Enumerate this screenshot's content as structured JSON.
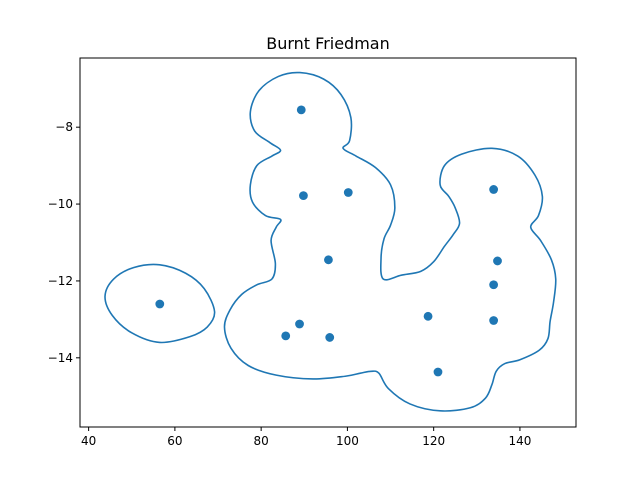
{
  "chart_data": {
    "type": "scatter",
    "title": "Burnt Friedman",
    "xlabel": "",
    "ylabel": "",
    "xlim": [
      38,
      153
    ],
    "ylim": [
      -15.8,
      -6.2
    ],
    "x_ticks": [
      40,
      60,
      80,
      100,
      120,
      140
    ],
    "y_ticks": [
      -8,
      -10,
      -12,
      -14
    ],
    "grid": false,
    "colors": {
      "points": "#1f77b4",
      "contour": "#1f77b4"
    },
    "points": [
      {
        "x": 56.5,
        "y": -12.6
      },
      {
        "x": 89.3,
        "y": -7.55
      },
      {
        "x": 89.8,
        "y": -9.78
      },
      {
        "x": 100.2,
        "y": -9.7
      },
      {
        "x": 95.6,
        "y": -11.45
      },
      {
        "x": 88.9,
        "y": -13.12
      },
      {
        "x": 85.7,
        "y": -13.43
      },
      {
        "x": 95.9,
        "y": -13.47
      },
      {
        "x": 118.7,
        "y": -12.92
      },
      {
        "x": 121.0,
        "y": -14.37
      },
      {
        "x": 133.9,
        "y": -9.62
      },
      {
        "x": 134.8,
        "y": -11.48
      },
      {
        "x": 133.9,
        "y": -12.1
      },
      {
        "x": 133.9,
        "y": -13.03
      }
    ],
    "contours": [
      [
        [
          56.5,
          -11.58
        ],
        [
          62.5,
          -11.8
        ],
        [
          66.8,
          -12.2
        ],
        [
          69.2,
          -12.8
        ],
        [
          67.5,
          -13.2
        ],
        [
          63.5,
          -13.45
        ],
        [
          56.5,
          -13.6
        ],
        [
          50.0,
          -13.35
        ],
        [
          45.5,
          -12.9
        ],
        [
          43.8,
          -12.4
        ],
        [
          45.8,
          -11.95
        ],
        [
          50.5,
          -11.65
        ],
        [
          56.5,
          -11.58
        ]
      ],
      [
        [
          89.0,
          -6.58
        ],
        [
          94.5,
          -6.75
        ],
        [
          98.5,
          -7.15
        ],
        [
          100.8,
          -7.75
        ],
        [
          100.5,
          -8.35
        ],
        [
          99.0,
          -8.55
        ],
        [
          102.0,
          -8.75
        ],
        [
          106.5,
          -9.05
        ],
        [
          110.0,
          -9.5
        ],
        [
          111.0,
          -10.1
        ],
        [
          110.0,
          -10.55
        ],
        [
          108.5,
          -10.9
        ],
        [
          107.8,
          -11.4
        ],
        [
          108.3,
          -11.95
        ],
        [
          112.5,
          -11.85
        ],
        [
          117.0,
          -11.75
        ],
        [
          120.0,
          -11.5
        ],
        [
          122.5,
          -11.1
        ],
        [
          124.5,
          -10.8
        ],
        [
          126.0,
          -10.5
        ],
        [
          125.0,
          -10.1
        ],
        [
          123.5,
          -9.8
        ],
        [
          121.5,
          -9.5
        ],
        [
          122.5,
          -9.0
        ],
        [
          126.5,
          -8.7
        ],
        [
          133.5,
          -8.55
        ],
        [
          139.5,
          -8.75
        ],
        [
          143.5,
          -9.25
        ],
        [
          145.2,
          -9.8
        ],
        [
          144.3,
          -10.3
        ],
        [
          142.5,
          -10.6
        ],
        [
          144.8,
          -10.95
        ],
        [
          147.3,
          -11.45
        ],
        [
          148.3,
          -11.95
        ],
        [
          147.8,
          -12.55
        ],
        [
          147.0,
          -13.05
        ],
        [
          146.5,
          -13.5
        ],
        [
          144.5,
          -13.8
        ],
        [
          140.0,
          -14.05
        ],
        [
          136.5,
          -14.15
        ],
        [
          134.5,
          -14.35
        ],
        [
          133.5,
          -14.7
        ],
        [
          132.0,
          -15.05
        ],
        [
          128.5,
          -15.3
        ],
        [
          121.5,
          -15.38
        ],
        [
          114.5,
          -15.2
        ],
        [
          109.5,
          -14.8
        ],
        [
          107.3,
          -14.4
        ],
        [
          105.5,
          -14.35
        ],
        [
          103.0,
          -14.4
        ],
        [
          99.5,
          -14.48
        ],
        [
          92.0,
          -14.55
        ],
        [
          83.5,
          -14.45
        ],
        [
          77.0,
          -14.2
        ],
        [
          73.0,
          -13.75
        ],
        [
          71.5,
          -13.2
        ],
        [
          72.8,
          -12.75
        ],
        [
          75.5,
          -12.35
        ],
        [
          79.0,
          -12.1
        ],
        [
          82.5,
          -11.95
        ],
        [
          83.3,
          -11.55
        ],
        [
          82.3,
          -10.95
        ],
        [
          83.5,
          -10.6
        ],
        [
          84.5,
          -10.4
        ],
        [
          81.0,
          -10.3
        ],
        [
          78.0,
          -9.95
        ],
        [
          77.5,
          -9.5
        ],
        [
          79.0,
          -9.0
        ],
        [
          82.5,
          -8.75
        ],
        [
          84.5,
          -8.6
        ],
        [
          82.0,
          -8.4
        ],
        [
          78.5,
          -8.1
        ],
        [
          77.5,
          -7.6
        ],
        [
          79.5,
          -7.05
        ],
        [
          84.0,
          -6.68
        ],
        [
          89.0,
          -6.58
        ]
      ]
    ]
  }
}
